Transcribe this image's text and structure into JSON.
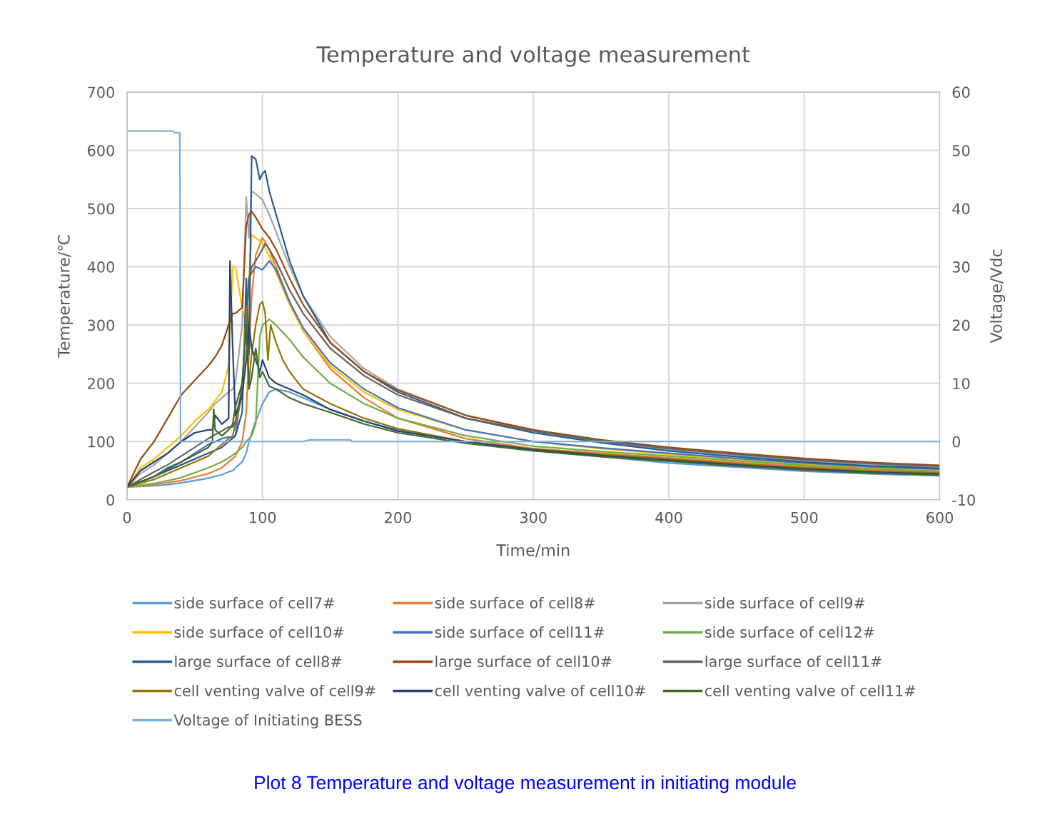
{
  "chart_data": {
    "type": "line",
    "title": "Temperature and voltage measurement",
    "xlabel": "Time/min",
    "ylabel": "Temperature/℃",
    "y2label": "Voltage/Vdc",
    "xlim": [
      0,
      600
    ],
    "xticks": [
      0,
      100,
      200,
      300,
      400,
      500,
      600
    ],
    "ylim": [
      0,
      700
    ],
    "yticks": [
      0,
      100,
      200,
      300,
      400,
      500,
      600,
      700
    ],
    "y2lim": [
      -10,
      60
    ],
    "y2ticks": [
      -10,
      0,
      10,
      20,
      30,
      40,
      50,
      60
    ],
    "grid": true,
    "legend": "bottom",
    "marker": "none",
    "line_style": "solid",
    "annotations": [
      "Plot 8 Temperature and voltage measurement in initiating module"
    ],
    "series": [
      {
        "name": "side surface of cell7#",
        "color": "#5b9bd5",
        "x": [
          0,
          10,
          20,
          30,
          40,
          50,
          60,
          65,
          70,
          75,
          78,
          80,
          85,
          88,
          90,
          92,
          95,
          100,
          105,
          110,
          120,
          130,
          150,
          175,
          200,
          250,
          300,
          350,
          400,
          450,
          500,
          550,
          600
        ],
        "values": [
          22,
          23,
          24,
          26,
          29,
          33,
          37,
          40,
          43,
          48,
          50,
          55,
          65,
          80,
          100,
          115,
          135,
          165,
          185,
          190,
          185,
          175,
          155,
          135,
          120,
          100,
          85,
          74,
          63,
          56,
          49,
          44.5,
          41
        ]
      },
      {
        "name": "side surface of cell8#",
        "color": "#ed7d31",
        "x": [
          0,
          20,
          40,
          60,
          70,
          75,
          80,
          85,
          88,
          90,
          92,
          95,
          100,
          105,
          110,
          120,
          130,
          150,
          175,
          200,
          250,
          300,
          350,
          400,
          450,
          500,
          550,
          600
        ],
        "values": [
          22,
          26,
          33,
          45,
          55,
          65,
          75,
          100,
          150,
          250,
          350,
          420,
          450,
          430,
          400,
          340,
          290,
          225,
          175,
          140,
          105,
          88,
          80,
          72,
          64,
          57,
          51,
          47.5
        ]
      },
      {
        "name": "side surface of cell9#",
        "color": "#a5a5a5",
        "x": [
          0,
          10,
          20,
          30,
          40,
          50,
          60,
          65,
          70,
          75,
          78,
          80,
          85,
          88,
          90,
          92,
          95,
          100,
          105,
          110,
          120,
          130,
          150,
          175,
          200,
          250,
          300,
          350,
          400,
          450,
          500,
          550,
          600
        ],
        "values": [
          22,
          45,
          60,
          80,
          100,
          125,
          150,
          165,
          175,
          185,
          190,
          200,
          300,
          520,
          450,
          530,
          525,
          515,
          490,
          460,
          400,
          350,
          280,
          225,
          190,
          145,
          118,
          100,
          86,
          76,
          67,
          60,
          56
        ]
      },
      {
        "name": "side surface of cell10#",
        "color": "#ffc000",
        "x": [
          0,
          10,
          20,
          30,
          40,
          50,
          60,
          65,
          70,
          75,
          78,
          80,
          85,
          88,
          90,
          92,
          95,
          100,
          105,
          110,
          120,
          130,
          150,
          175,
          200,
          250,
          300,
          350,
          400,
          450,
          500,
          550,
          600
        ],
        "values": [
          22,
          55,
          70,
          90,
          110,
          135,
          155,
          170,
          185,
          230,
          400,
          400,
          330,
          300,
          380,
          455,
          450,
          440,
          420,
          390,
          335,
          290,
          230,
          185,
          155,
          120,
          100,
          88,
          78,
          69.5,
          61.5,
          55,
          51
        ]
      },
      {
        "name": "side surface of cell11#",
        "color": "#4472c4",
        "x": [
          0,
          10,
          20,
          30,
          40,
          50,
          60,
          65,
          70,
          75,
          78,
          80,
          85,
          88,
          90,
          92,
          95,
          100,
          105,
          110,
          120,
          130,
          150,
          175,
          200,
          250,
          300,
          350,
          400,
          450,
          500,
          550,
          600
        ],
        "values": [
          22,
          30,
          40,
          55,
          65,
          80,
          95,
          100,
          105,
          108,
          105,
          110,
          200,
          300,
          380,
          390,
          400,
          395,
          410,
          395,
          340,
          295,
          235,
          190,
          158,
          120,
          100,
          89,
          80,
          71,
          63,
          56.5,
          52.5
        ]
      },
      {
        "name": "side surface of cell12#",
        "color": "#70ad47",
        "x": [
          0,
          20,
          40,
          60,
          70,
          75,
          80,
          85,
          88,
          90,
          92,
          95,
          98,
          100,
          105,
          110,
          120,
          130,
          150,
          175,
          200,
          250,
          300,
          350,
          400,
          450,
          500,
          550,
          600
        ],
        "values": [
          22,
          28,
          38,
          55,
          65,
          72,
          80,
          90,
          100,
          105,
          110,
          130,
          280,
          300,
          310,
          300,
          275,
          245,
          200,
          165,
          140,
          110,
          92,
          83,
          75,
          67,
          59.5,
          53,
          49
        ]
      },
      {
        "name": "large surface of cell8#",
        "color": "#255e91",
        "x": [
          0,
          20,
          40,
          60,
          70,
          75,
          80,
          85,
          88,
          90,
          92,
          95,
          98,
          100,
          102,
          105,
          110,
          120,
          130,
          150,
          175,
          200,
          250,
          300,
          350,
          400,
          450,
          500,
          550,
          600
        ],
        "values": [
          22,
          40,
          60,
          80,
          90,
          100,
          110,
          150,
          380,
          250,
          590,
          585,
          550,
          560,
          565,
          530,
          490,
          410,
          350,
          270,
          220,
          185,
          140,
          115,
          98,
          84,
          74,
          65,
          58,
          54
        ]
      },
      {
        "name": "large surface of cell10#",
        "color": "#9e480e",
        "x": [
          0,
          10,
          20,
          30,
          40,
          50,
          60,
          65,
          70,
          75,
          78,
          80,
          85,
          88,
          90,
          92,
          95,
          100,
          105,
          110,
          120,
          130,
          150,
          175,
          200,
          250,
          300,
          350,
          400,
          450,
          500,
          550,
          600
        ],
        "values": [
          22,
          70,
          100,
          140,
          180,
          205,
          230,
          245,
          265,
          300,
          320,
          320,
          330,
          470,
          490,
          495,
          485,
          465,
          450,
          430,
          380,
          335,
          270,
          220,
          188,
          145,
          120,
          103,
          90,
          80,
          71,
          64,
          59
        ]
      },
      {
        "name": "large surface of cell11#",
        "color": "#636363",
        "x": [
          0,
          10,
          20,
          30,
          40,
          50,
          60,
          65,
          70,
          75,
          78,
          80,
          85,
          88,
          90,
          92,
          95,
          100,
          102,
          105,
          110,
          120,
          130,
          150,
          175,
          200,
          250,
          300,
          350,
          400,
          450,
          500,
          550,
          600
        ],
        "values": [
          22,
          35,
          48,
          60,
          75,
          90,
          105,
          112,
          118,
          125,
          125,
          135,
          190,
          300,
          380,
          400,
          410,
          430,
          440,
          430,
          410,
          360,
          320,
          260,
          213,
          180,
          140,
          118,
          101,
          88,
          78,
          69,
          62,
          57.5
        ]
      },
      {
        "name": "cell venting valve of cell9#",
        "color": "#997300",
        "x": [
          0,
          20,
          40,
          60,
          65,
          70,
          75,
          78,
          80,
          85,
          88,
          90,
          92,
          95,
          98,
          100,
          102,
          104,
          106,
          110,
          115,
          120,
          130,
          150,
          175,
          200,
          250,
          300,
          350,
          400,
          450,
          500,
          550,
          600
        ],
        "values": [
          22,
          35,
          55,
          75,
          85,
          95,
          105,
          110,
          130,
          180,
          330,
          200,
          250,
          300,
          335,
          340,
          320,
          240,
          300,
          270,
          240,
          220,
          190,
          165,
          140,
          122,
          100,
          87,
          78,
          70,
          62,
          55,
          49,
          46
        ]
      },
      {
        "name": "cell venting valve of cell10#",
        "color": "#264478",
        "x": [
          0,
          10,
          20,
          30,
          40,
          50,
          60,
          63,
          65,
          70,
          75,
          76,
          78,
          80,
          85,
          88,
          90,
          92,
          95,
          98,
          100,
          105,
          110,
          120,
          130,
          150,
          175,
          200,
          250,
          300,
          350,
          400,
          450,
          500,
          550,
          600
        ],
        "values": [
          22,
          50,
          65,
          80,
          100,
          115,
          120,
          120,
          145,
          130,
          140,
          410,
          260,
          145,
          180,
          240,
          300,
          260,
          240,
          220,
          240,
          210,
          200,
          190,
          180,
          155,
          135,
          118,
          100,
          86,
          76,
          68,
          60,
          53,
          47.5,
          44
        ]
      },
      {
        "name": "cell venting valve of cell11#",
        "color": "#43682b",
        "x": [
          0,
          20,
          40,
          60,
          63,
          64,
          65,
          70,
          75,
          78,
          80,
          85,
          88,
          90,
          92,
          95,
          98,
          100,
          105,
          110,
          120,
          130,
          150,
          175,
          200,
          250,
          300,
          350,
          400,
          450,
          500,
          550,
          600
        ],
        "values": [
          22,
          40,
          65,
          90,
          100,
          155,
          120,
          110,
          120,
          130,
          160,
          200,
          300,
          190,
          210,
          260,
          210,
          220,
          195,
          190,
          175,
          165,
          150,
          130,
          115,
          97,
          84,
          74,
          66,
          58,
          51,
          46,
          42.5
        ]
      },
      {
        "name": "Voltage of Initiating BESS",
        "color": "#7cafdd",
        "axis": "y2",
        "x": [
          0,
          34,
          35,
          39,
          39.5,
          130,
          135,
          165,
          166,
          600
        ],
        "values": [
          53.3,
          53.3,
          53.0,
          53.0,
          0,
          0,
          0.3,
          0.3,
          0,
          0
        ]
      }
    ]
  }
}
